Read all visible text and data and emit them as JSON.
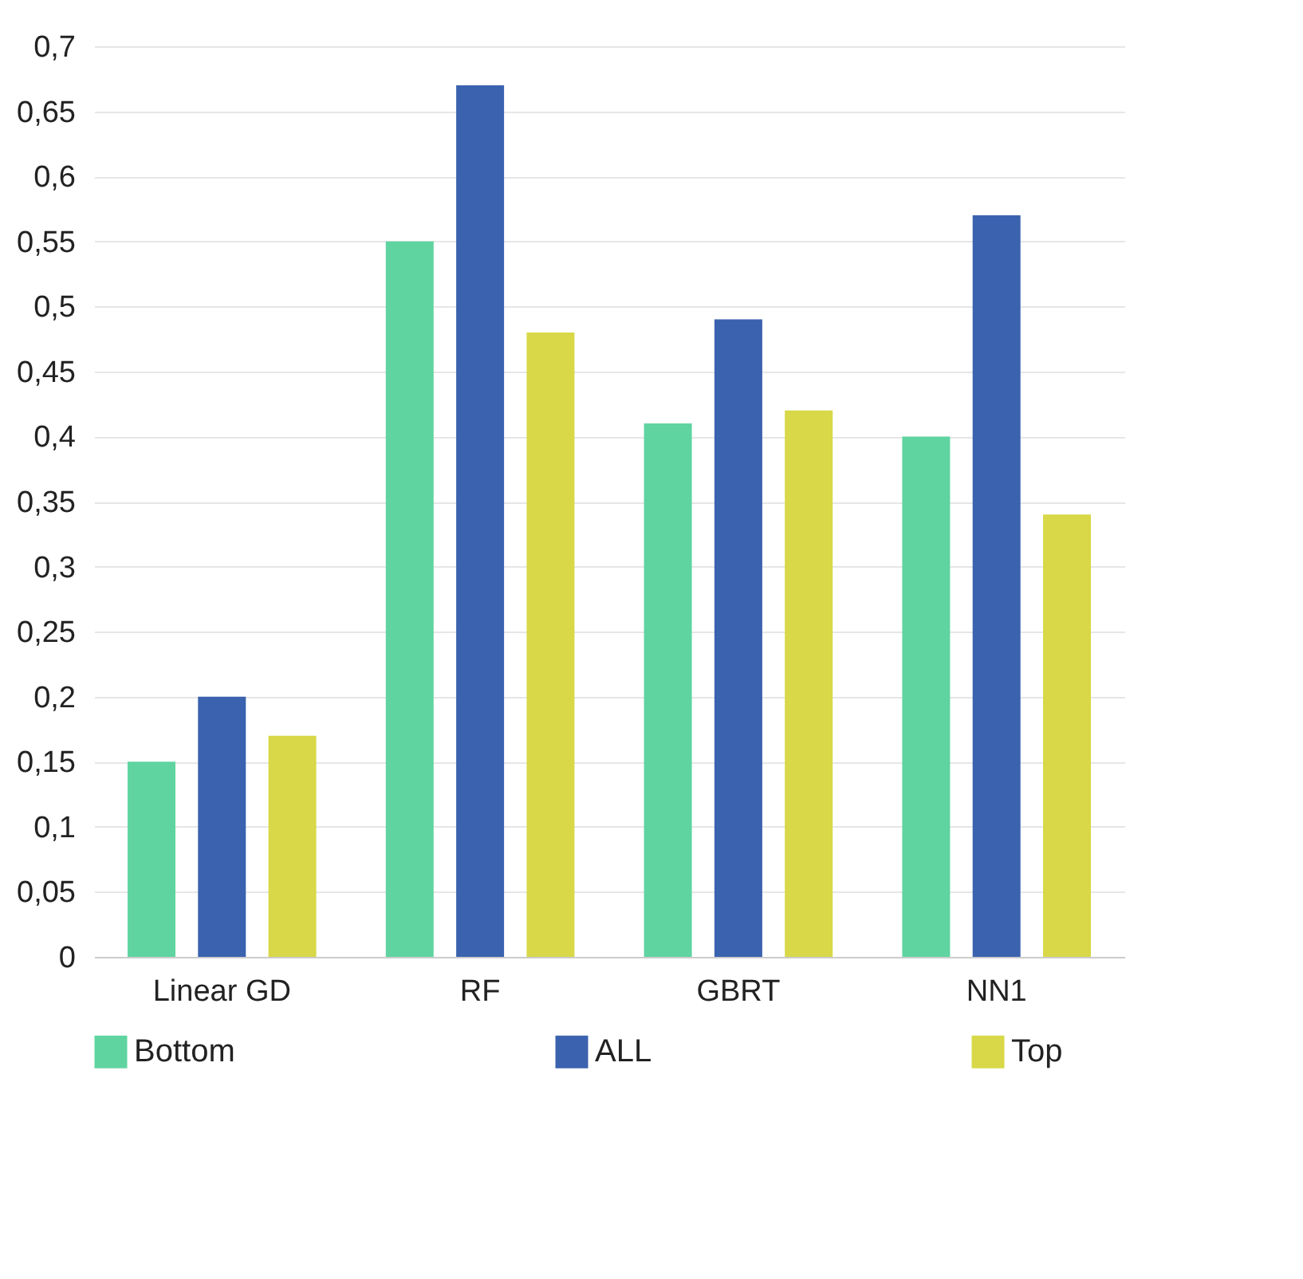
{
  "chart_data": {
    "type": "bar",
    "categories": [
      "Linear GD",
      "RF",
      "GBRT",
      "NN1"
    ],
    "series": [
      {
        "name": "Bottom",
        "color": "#5fd4a0",
        "values": [
          0.15,
          0.55,
          0.41,
          0.4
        ]
      },
      {
        "name": "ALL",
        "color": "#3a62ae",
        "values": [
          0.2,
          0.67,
          0.49,
          0.57
        ]
      },
      {
        "name": "Top",
        "color": "#d8d848",
        "values": [
          0.17,
          0.48,
          0.42,
          0.34
        ]
      }
    ],
    "ylim": [
      0,
      0.7
    ],
    "yticks": [
      0,
      {
        "value": 0.05,
        "label": "0,05"
      },
      {
        "value": 0.1,
        "label": "0,1"
      },
      {
        "value": 0.15,
        "label": "0,15"
      },
      {
        "value": 0.2,
        "label": "0,2"
      },
      {
        "value": 0.25,
        "label": "0,25"
      },
      {
        "value": 0.3,
        "label": "0,3"
      },
      {
        "value": 0.35,
        "label": "0,35"
      },
      {
        "value": 0.4,
        "label": "0,4"
      },
      {
        "value": 0.45,
        "label": "0,45"
      },
      {
        "value": 0.5,
        "label": "0,5"
      },
      {
        "value": 0.55,
        "label": "0,55"
      },
      {
        "value": 0.6,
        "label": "0,6"
      },
      {
        "value": 0.65,
        "label": "0,65"
      },
      {
        "value": 0.7,
        "label": "0,7"
      }
    ],
    "grid": "y",
    "legend": "bottom"
  }
}
